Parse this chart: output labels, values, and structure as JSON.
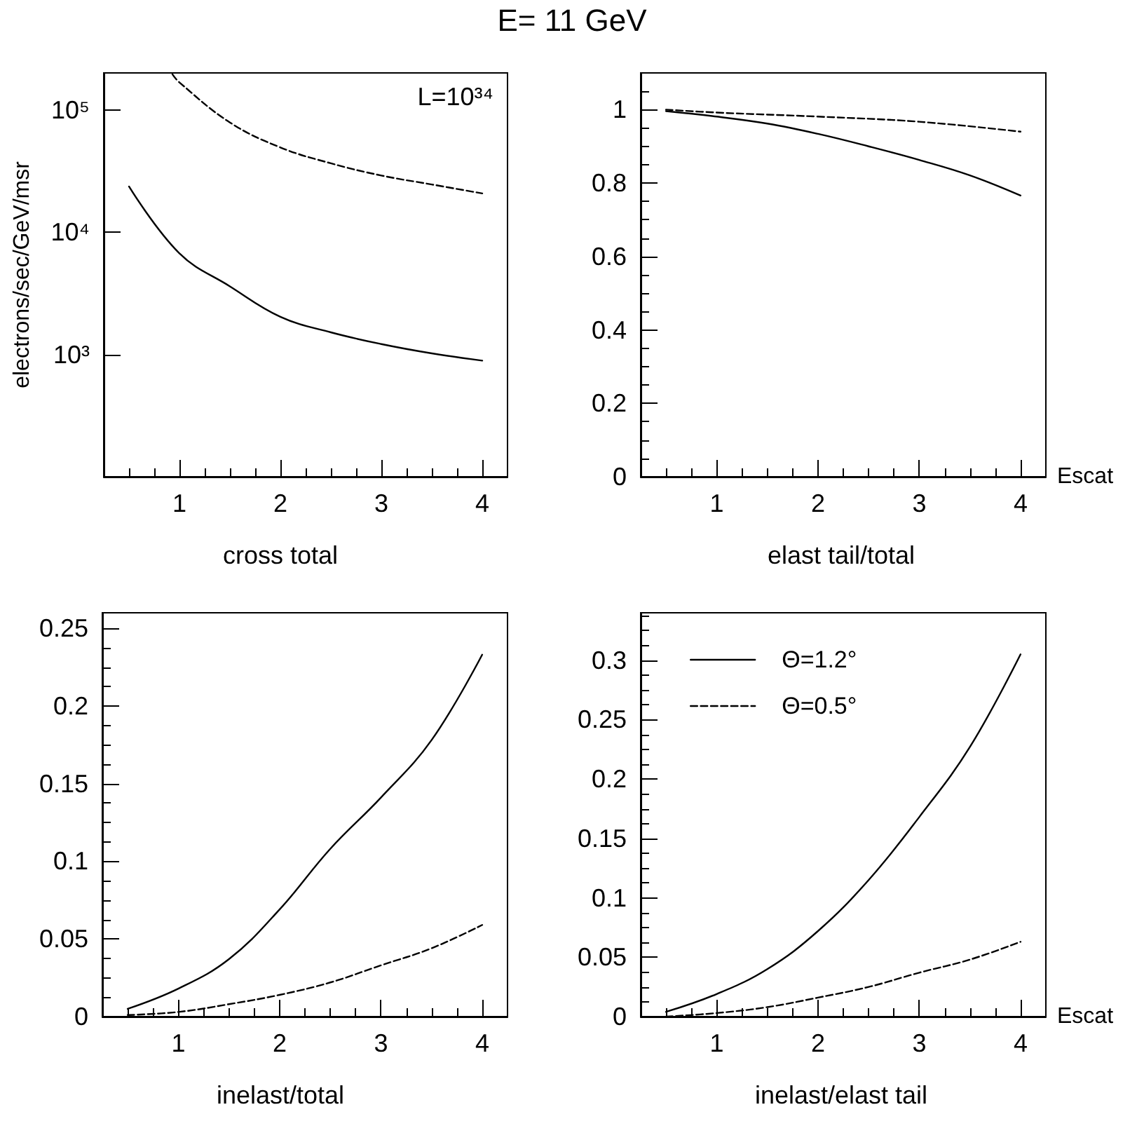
{
  "chart_data": [
    {
      "type": "line",
      "title": "cross total",
      "ylabel": "electrons/sec/GeV/msr",
      "annotations": [
        "E= 11 GeV",
        "L=10³⁴"
      ],
      "log": "y",
      "xlim": [
        0.25,
        4.25
      ],
      "xticks": [
        1,
        2,
        3,
        4
      ],
      "ylim": [
        100,
        200000
      ],
      "yticks": [
        {
          "value": 1000,
          "label": "10³"
        },
        {
          "value": 10000,
          "label": "10⁴"
        },
        {
          "value": 100000,
          "label": "10⁵"
        }
      ],
      "grid": false,
      "legend": false,
      "marker": "none",
      "series": [
        {
          "color": "#000000",
          "line_style": "solid",
          "x": [
            0.5,
            1,
            1.5,
            2,
            2.5,
            3,
            3.5,
            4
          ],
          "values": [
            23600,
            6700,
            3600,
            2030,
            1515,
            1215,
            1020,
            890
          ]
        },
        {
          "color": "#000000",
          "line_style": "dashed",
          "x": [
            0.93,
            1,
            1.5,
            2,
            2.5,
            3,
            3.5,
            4
          ],
          "values": [
            195000,
            167000,
            78700,
            49200,
            36500,
            29000,
            24500,
            20700
          ]
        }
      ]
    },
    {
      "type": "line",
      "title": "elast tail/total",
      "xlabel": "Escat",
      "xlim": [
        0.25,
        4.25
      ],
      "xticks": [
        1,
        2,
        3,
        4
      ],
      "ylim": [
        0,
        1.1
      ],
      "yticks": [
        0,
        0.2,
        0.4,
        0.6,
        0.8,
        1
      ],
      "grid": false,
      "legend": false,
      "marker": "none",
      "series": [
        {
          "color": "#000000",
          "line_style": "solid",
          "x": [
            0.5,
            1,
            1.5,
            2,
            2.5,
            3,
            3.5,
            4
          ],
          "values": [
            0.996,
            0.981,
            0.962,
            0.934,
            0.9,
            0.863,
            0.821,
            0.766
          ]
        },
        {
          "color": "#000000",
          "line_style": "dashed",
          "x": [
            0.5,
            1,
            2,
            3,
            4
          ],
          "values": [
            1.0,
            0.992,
            0.981,
            0.967,
            0.94
          ]
        }
      ]
    },
    {
      "type": "line",
      "title": "inelast/total",
      "xlim": [
        0.25,
        4.25
      ],
      "xticks": [
        1,
        2,
        3,
        4
      ],
      "ylim": [
        0,
        0.26
      ],
      "yticks": [
        0,
        0.05,
        0.1,
        0.15,
        0.2,
        0.25
      ],
      "grid": false,
      "legend": false,
      "marker": "none",
      "series": [
        {
          "color": "#000000",
          "line_style": "solid",
          "x": [
            0.5,
            1,
            1.5,
            2,
            2.5,
            3,
            3.5,
            4
          ],
          "values": [
            0.005,
            0.018,
            0.037,
            0.069,
            0.108,
            0.141,
            0.178,
            0.233
          ]
        },
        {
          "color": "#000000",
          "line_style": "dashed",
          "x": [
            0.5,
            1,
            1.5,
            2,
            2.5,
            3,
            3.5,
            4
          ],
          "values": [
            0.001,
            0.003,
            0.008,
            0.014,
            0.022,
            0.033,
            0.044,
            0.059
          ]
        }
      ]
    },
    {
      "type": "line",
      "title": "inelast/elast tail",
      "xlabel": "Escat",
      "xlim": [
        0.25,
        4.25
      ],
      "xticks": [
        1,
        2,
        3,
        4
      ],
      "ylim": [
        0,
        0.34
      ],
      "yticks": [
        0,
        0.05,
        0.1,
        0.15,
        0.2,
        0.25,
        0.3
      ],
      "grid": false,
      "legend": "top left",
      "marker": "none",
      "series": [
        {
          "name": "Θ=1.2°",
          "color": "#000000",
          "line_style": "solid",
          "x": [
            0.5,
            1,
            1.5,
            2,
            2.5,
            3,
            3.5,
            4
          ],
          "values": [
            0.004,
            0.019,
            0.04,
            0.072,
            0.115,
            0.168,
            0.227,
            0.305
          ]
        },
        {
          "name": "Θ=0.5°",
          "color": "#000000",
          "line_style": "dashed",
          "x": [
            0.5,
            1,
            1.5,
            2,
            2.5,
            3,
            3.5,
            4
          ],
          "values": [
            0,
            0.003,
            0.008,
            0.016,
            0.025,
            0.037,
            0.048,
            0.063
          ]
        }
      ]
    }
  ]
}
